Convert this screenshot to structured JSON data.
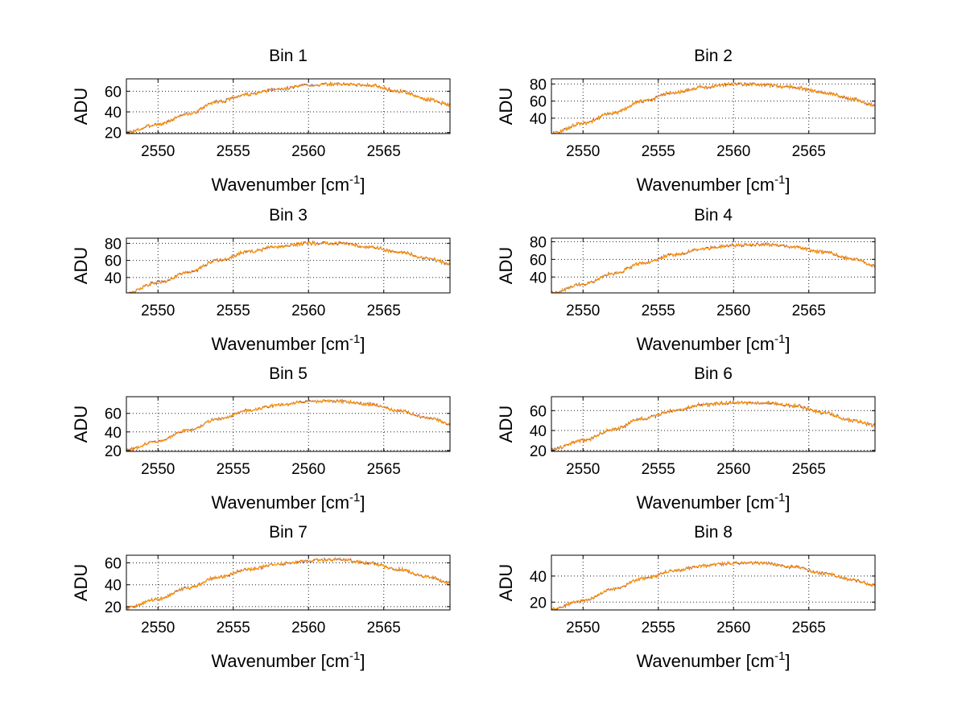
{
  "figure": {
    "title": "",
    "series_colors": [
      "#1f3fbf",
      "#bf1f1f",
      "#ff9900"
    ],
    "line_color": "#ff9900"
  },
  "chart_data": [
    {
      "type": "line",
      "title": "Bin 1",
      "xlabel": "Wavenumber [cm",
      "xlabel_sup": "-1",
      "xlabel_suffix": "]",
      "ylabel": "ADU",
      "xlim": [
        2547.9,
        2569.4
      ],
      "ylim": [
        19,
        72
      ],
      "xticks": [
        2550,
        2555,
        2560,
        2565
      ],
      "yticks": [
        20,
        40,
        60
      ],
      "grid": true,
      "x_start": 2547.9,
      "x_end": 2569.4,
      "control_x": [
        2547.9,
        2550,
        2552,
        2554,
        2556,
        2558,
        2560,
        2562,
        2564,
        2566,
        2568,
        2569.4
      ],
      "control_y": [
        20,
        28,
        38,
        50,
        57,
        62,
        66,
        67,
        66,
        60,
        52,
        47
      ],
      "noise": 1.2
    },
    {
      "type": "line",
      "title": "Bin 2",
      "xlabel": "Wavenumber [cm",
      "xlabel_sup": "-1",
      "xlabel_suffix": "]",
      "ylabel": "ADU",
      "xlim": [
        2547.9,
        2569.4
      ],
      "ylim": [
        22,
        86
      ],
      "xticks": [
        2550,
        2555,
        2560,
        2565
      ],
      "yticks": [
        40,
        60,
        80
      ],
      "grid": true,
      "x_start": 2547.9,
      "x_end": 2569.4,
      "control_x": [
        2547.9,
        2550,
        2552,
        2554,
        2556,
        2558,
        2560,
        2562,
        2564,
        2566,
        2568,
        2569.4
      ],
      "control_y": [
        22,
        34,
        46,
        60,
        70,
        76,
        80,
        79,
        76,
        70,
        62,
        55
      ],
      "noise": 1.5
    },
    {
      "type": "line",
      "title": "Bin 3",
      "xlabel": "Wavenumber [cm",
      "xlabel_sup": "-1",
      "xlabel_suffix": "]",
      "ylabel": "ADU",
      "xlim": [
        2547.9,
        2569.4
      ],
      "ylim": [
        22,
        86
      ],
      "xticks": [
        2550,
        2555,
        2560,
        2565
      ],
      "yticks": [
        40,
        60,
        80
      ],
      "grid": true,
      "x_start": 2547.9,
      "x_end": 2569.4,
      "control_x": [
        2547.9,
        2550,
        2552,
        2554,
        2556,
        2558,
        2560,
        2562,
        2564,
        2566,
        2568,
        2569.4
      ],
      "control_y": [
        22,
        34,
        46,
        60,
        70,
        76,
        80,
        80,
        76,
        70,
        62,
        56
      ],
      "noise": 1.5
    },
    {
      "type": "line",
      "title": "Bin 4",
      "xlabel": "Wavenumber [cm",
      "xlabel_sup": "-1",
      "xlabel_suffix": "]",
      "ylabel": "ADU",
      "xlim": [
        2547.9,
        2569.4
      ],
      "ylim": [
        22,
        84
      ],
      "xticks": [
        2550,
        2555,
        2560,
        2565
      ],
      "yticks": [
        40,
        60,
        80
      ],
      "grid": true,
      "x_start": 2547.9,
      "x_end": 2569.4,
      "control_x": [
        2547.9,
        2550,
        2552,
        2554,
        2556,
        2558,
        2560,
        2562,
        2564,
        2566,
        2568,
        2569.4
      ],
      "control_y": [
        22,
        32,
        44,
        56,
        65,
        72,
        76,
        77,
        74,
        68,
        60,
        53
      ],
      "noise": 1.4
    },
    {
      "type": "line",
      "title": "Bin 5",
      "xlabel": "Wavenumber [cm",
      "xlabel_sup": "-1",
      "xlabel_suffix": "]",
      "ylabel": "ADU",
      "xlim": [
        2547.9,
        2569.4
      ],
      "ylim": [
        19,
        78
      ],
      "xticks": [
        2550,
        2555,
        2560,
        2565
      ],
      "yticks": [
        20,
        40,
        60
      ],
      "grid": true,
      "x_start": 2547.9,
      "x_end": 2569.4,
      "control_x": [
        2547.9,
        2550,
        2552,
        2554,
        2556,
        2558,
        2560,
        2562,
        2564,
        2566,
        2568,
        2569.4
      ],
      "control_y": [
        21,
        30,
        42,
        54,
        63,
        69,
        73,
        73,
        70,
        63,
        55,
        49
      ],
      "noise": 1.2
    },
    {
      "type": "line",
      "title": "Bin 6",
      "xlabel": "Wavenumber [cm",
      "xlabel_sup": "-1",
      "xlabel_suffix": "]",
      "ylabel": "ADU",
      "xlim": [
        2547.9,
        2569.4
      ],
      "ylim": [
        19,
        74
      ],
      "xticks": [
        2550,
        2555,
        2560,
        2565
      ],
      "yticks": [
        20,
        40,
        60
      ],
      "grid": true,
      "x_start": 2547.9,
      "x_end": 2569.4,
      "control_x": [
        2547.9,
        2550,
        2552,
        2554,
        2556,
        2558,
        2560,
        2562,
        2564,
        2566,
        2568,
        2569.4
      ],
      "control_y": [
        21,
        30,
        41,
        52,
        60,
        66,
        68,
        68,
        65,
        58,
        50,
        45
      ],
      "noise": 1.3
    },
    {
      "type": "line",
      "title": "Bin 7",
      "xlabel": "Wavenumber [cm",
      "xlabel_sup": "-1",
      "xlabel_suffix": "]",
      "ylabel": "ADU",
      "xlim": [
        2547.9,
        2569.4
      ],
      "ylim": [
        17,
        67
      ],
      "xticks": [
        2550,
        2555,
        2560,
        2565
      ],
      "yticks": [
        20,
        40,
        60
      ],
      "grid": true,
      "x_start": 2547.9,
      "x_end": 2569.4,
      "control_x": [
        2547.9,
        2550,
        2552,
        2554,
        2556,
        2558,
        2560,
        2562,
        2564,
        2566,
        2568,
        2569.4
      ],
      "control_y": [
        19,
        27,
        37,
        47,
        54,
        59,
        62,
        63,
        60,
        54,
        47,
        42
      ],
      "noise": 1.1
    },
    {
      "type": "line",
      "title": "Bin 8",
      "xlabel": "Wavenumber [cm",
      "xlabel_sup": "-1",
      "xlabel_suffix": "]",
      "ylabel": "ADU",
      "xlim": [
        2547.9,
        2569.4
      ],
      "ylim": [
        14,
        56
      ],
      "xticks": [
        2550,
        2555,
        2560,
        2565
      ],
      "yticks": [
        20,
        40
      ],
      "grid": true,
      "x_start": 2547.9,
      "x_end": 2569.4,
      "control_x": [
        2547.9,
        2550,
        2552,
        2554,
        2556,
        2558,
        2560,
        2562,
        2564,
        2566,
        2568,
        2569.4
      ],
      "control_y": [
        15,
        21,
        30,
        38,
        44,
        48,
        50,
        50,
        47,
        42,
        37,
        33
      ],
      "noise": 0.9
    }
  ]
}
